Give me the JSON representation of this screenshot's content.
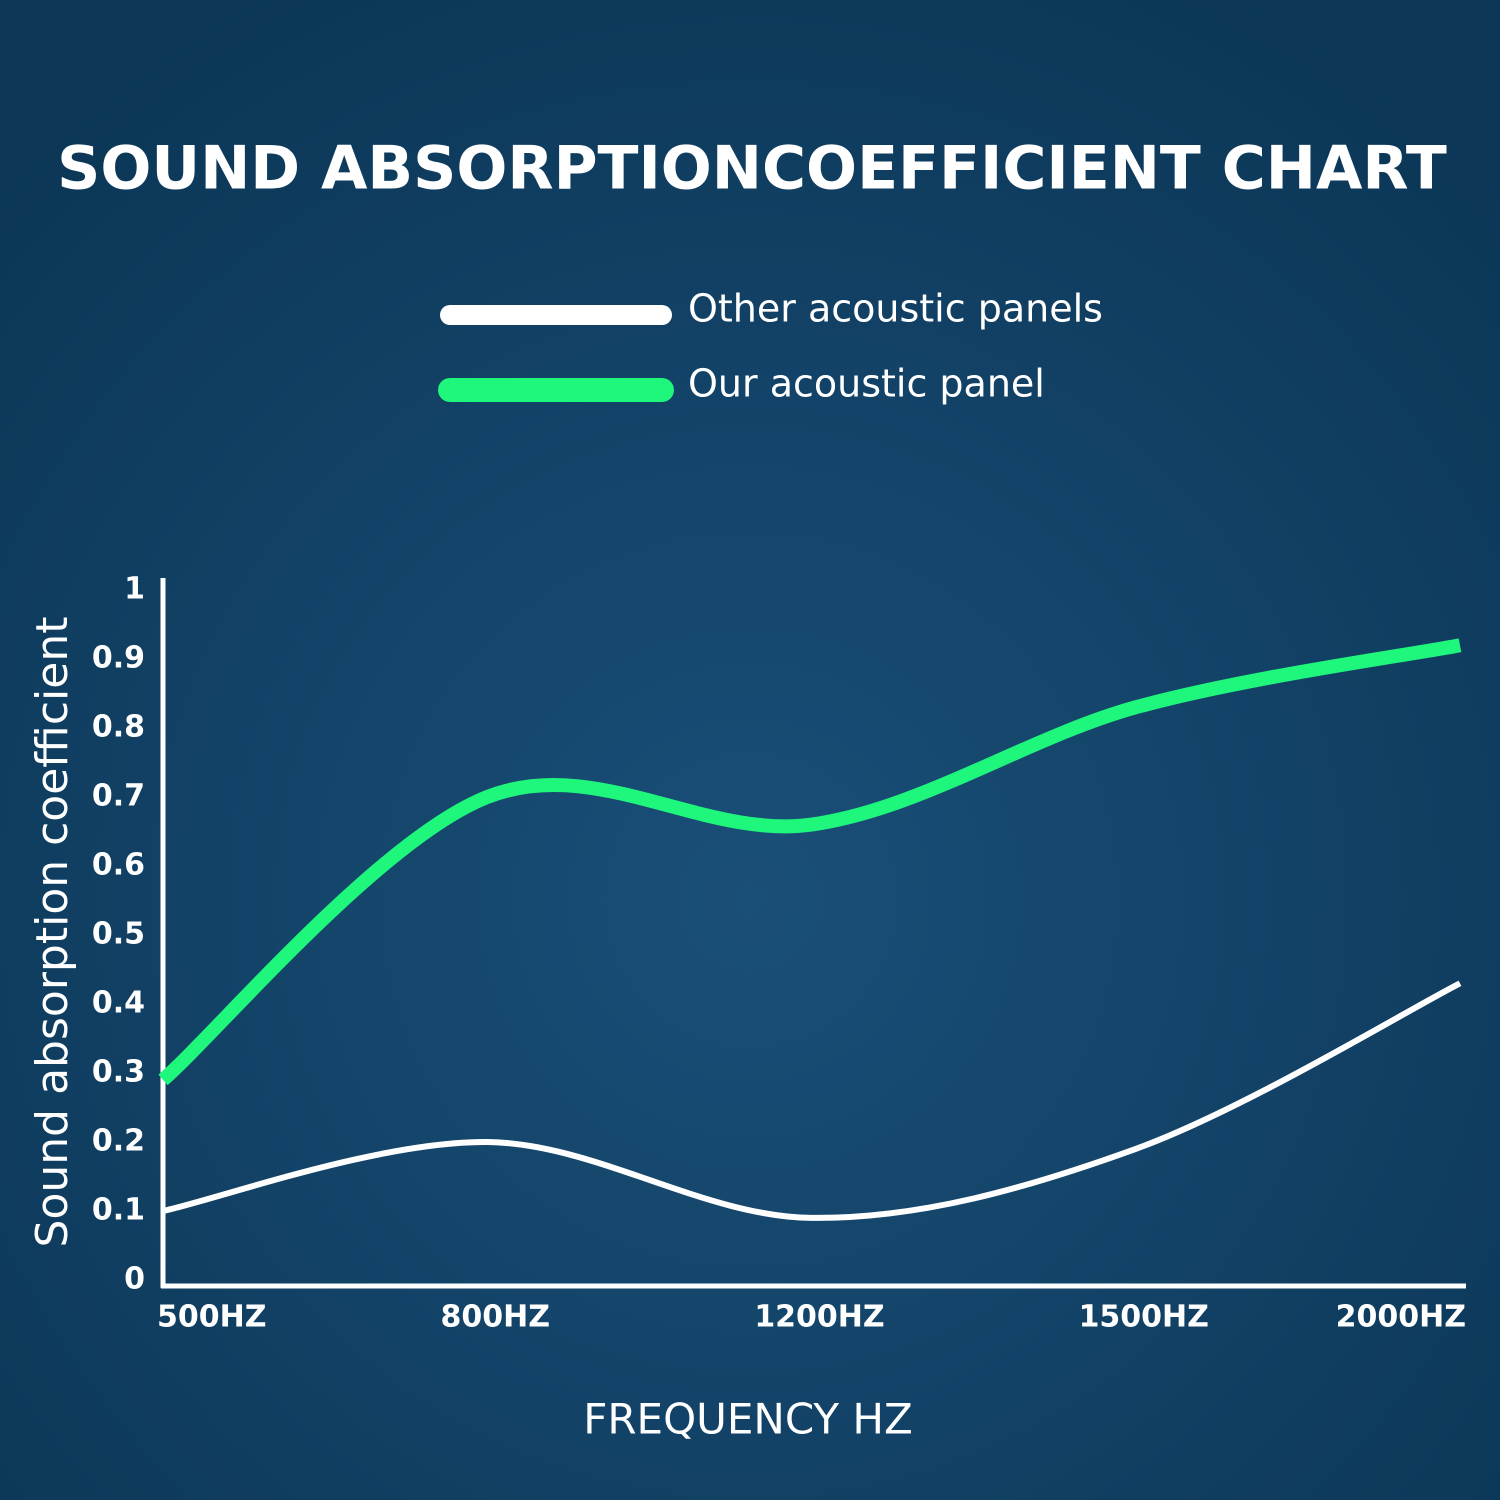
{
  "chart_data": {
    "type": "line",
    "title": "SOUND ABSORPTIONCOEFFICIENT CHART",
    "x_label": "FREQUENCY HZ",
    "y_label": "Sound absorption coefficient",
    "categories": [
      "500HZ",
      "800HZ",
      "1200HZ",
      "1500HZ",
      "2000HZ"
    ],
    "series": [
      {
        "name": "Other acoustic panels",
        "color": "#ffffff",
        "values": [
          0.1,
          0.2,
          0.09,
          0.19,
          0.43
        ]
      },
      {
        "name": "Our acoustic panel",
        "color": "#1ef77c",
        "values": [
          0.29,
          0.7,
          0.66,
          0.83,
          0.92
        ]
      }
    ],
    "ylim": [
      0,
      1
    ],
    "yticks": [
      0,
      0.1,
      0.2,
      0.3,
      0.4,
      0.5,
      0.6,
      0.7,
      0.8,
      0.9,
      1
    ]
  }
}
